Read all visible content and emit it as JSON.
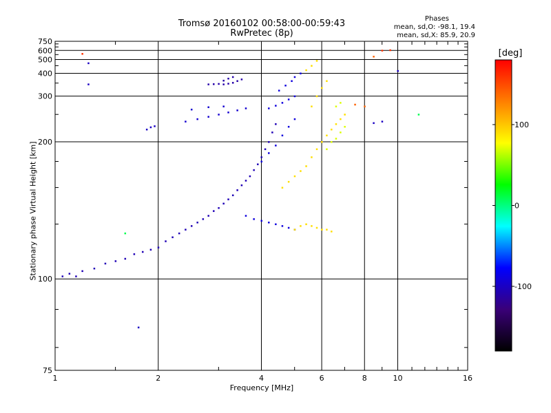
{
  "header": {
    "title_line1": "Tromsø 20160102 00:58:00-00:59:43",
    "title_line2": "RwPretec (8p)",
    "stats_heading": "Phases",
    "stats_o": "mean, sd,O: -98.1, 19.4",
    "stats_x": "mean, sd,X:  85.9, 20.9"
  },
  "chart_data": {
    "type": "scatter",
    "title": "Tromsø 20160102 00:58:00-00:59:43",
    "subtitle": "RwPretec (8p)",
    "xlabel": "Frequency [MHz]",
    "ylabel": "Stationary phase Virtual Height [km]",
    "xscale": "log",
    "yscale": "reciprocal",
    "xlim": [
      1,
      16
    ],
    "ylim": [
      75,
      750
    ],
    "x_ticks": [
      1,
      2,
      4,
      6,
      8,
      10,
      16
    ],
    "y_ticks": [
      75,
      100,
      200,
      300,
      400,
      500,
      600,
      750
    ],
    "grid": true,
    "colorbar": {
      "label": "[deg]",
      "range": [
        -180,
        180
      ],
      "ticks": [
        100,
        0,
        -100
      ],
      "colormap": [
        "#000000",
        "#3a0078",
        "#0000ff",
        "#00ffff",
        "#00ff00",
        "#ffff00",
        "#ff7f00",
        "#ff0000"
      ]
    },
    "series": [
      {
        "phase": -105,
        "points": [
          [
            1.05,
            101
          ],
          [
            1.1,
            102
          ],
          [
            1.15,
            101
          ],
          [
            1.2,
            103
          ],
          [
            1.3,
            104
          ],
          [
            1.4,
            106
          ],
          [
            1.5,
            107
          ],
          [
            1.6,
            108
          ],
          [
            1.7,
            110
          ],
          [
            1.8,
            111
          ],
          [
            1.9,
            112
          ],
          [
            2.0,
            113
          ],
          [
            2.1,
            116
          ],
          [
            2.2,
            118
          ],
          [
            2.3,
            120
          ],
          [
            2.4,
            122
          ],
          [
            2.5,
            124
          ],
          [
            2.6,
            126
          ],
          [
            2.7,
            128
          ],
          [
            2.8,
            130
          ],
          [
            2.9,
            133
          ],
          [
            3.0,
            135
          ],
          [
            3.1,
            138
          ],
          [
            3.2,
            141
          ],
          [
            3.3,
            144
          ],
          [
            3.4,
            148
          ],
          [
            3.5,
            152
          ],
          [
            3.6,
            156
          ],
          [
            3.7,
            160
          ],
          [
            3.8,
            166
          ],
          [
            3.9,
            172
          ],
          [
            4.0,
            180
          ],
          [
            4.1,
            190
          ],
          [
            4.2,
            200
          ],
          [
            4.3,
            215
          ],
          [
            4.4,
            230
          ]
        ]
      },
      {
        "phase": -110,
        "points": [
          [
            2.8,
            345
          ],
          [
            2.9,
            346
          ],
          [
            3.0,
            347
          ],
          [
            3.1,
            345
          ],
          [
            3.2,
            348
          ],
          [
            3.3,
            352
          ],
          [
            3.4,
            360
          ],
          [
            3.5,
            368
          ],
          [
            3.1,
            362
          ],
          [
            3.2,
            372
          ],
          [
            3.3,
            380
          ]
        ]
      },
      {
        "phase": -95,
        "points": [
          [
            2.4,
            235
          ],
          [
            2.6,
            240
          ],
          [
            2.8,
            245
          ],
          [
            3.0,
            250
          ],
          [
            3.2,
            255
          ],
          [
            3.4,
            260
          ],
          [
            3.6,
            265
          ],
          [
            2.5,
            262
          ],
          [
            2.8,
            268
          ],
          [
            3.1,
            270
          ]
        ]
      },
      {
        "phase": -100,
        "points": [
          [
            1.85,
            220
          ],
          [
            1.9,
            224
          ],
          [
            1.95,
            226
          ],
          [
            1.25,
            470
          ],
          [
            1.25,
            345
          ],
          [
            1.75,
            85
          ],
          [
            10.0,
            415
          ],
          [
            9.0,
            235
          ],
          [
            8.5,
            232
          ]
        ]
      },
      {
        "phase": -90,
        "points": [
          [
            3.6,
            130
          ],
          [
            3.8,
            128
          ],
          [
            4.0,
            127
          ],
          [
            4.2,
            126
          ],
          [
            4.4,
            125
          ],
          [
            4.6,
            124
          ],
          [
            4.8,
            123
          ],
          [
            5.0,
            122
          ],
          [
            4.0,
            175
          ],
          [
            4.2,
            185
          ],
          [
            4.4,
            195
          ],
          [
            4.6,
            210
          ],
          [
            4.8,
            225
          ],
          [
            5.0,
            240
          ],
          [
            4.2,
            265
          ],
          [
            4.4,
            272
          ],
          [
            4.6,
            280
          ],
          [
            4.8,
            290
          ],
          [
            5.0,
            300
          ],
          [
            4.5,
            320
          ],
          [
            4.7,
            340
          ],
          [
            4.9,
            360
          ],
          [
            5.0,
            380
          ],
          [
            5.2,
            400
          ]
        ]
      },
      {
        "phase": 90,
        "points": [
          [
            4.6,
            150
          ],
          [
            4.8,
            155
          ],
          [
            5.0,
            160
          ],
          [
            5.2,
            165
          ],
          [
            5.4,
            170
          ],
          [
            5.6,
            180
          ],
          [
            5.8,
            190
          ],
          [
            6.0,
            200
          ],
          [
            6.2,
            210
          ],
          [
            6.4,
            220
          ],
          [
            6.6,
            230
          ],
          [
            6.8,
            240
          ],
          [
            7.0,
            250
          ],
          [
            5.0,
            122
          ],
          [
            5.2,
            124
          ],
          [
            5.4,
            125
          ],
          [
            5.6,
            124
          ],
          [
            5.8,
            123
          ],
          [
            6.0,
            122
          ],
          [
            6.2,
            122
          ],
          [
            6.4,
            121
          ],
          [
            5.6,
            270
          ],
          [
            5.8,
            300
          ],
          [
            6.0,
            330
          ],
          [
            6.2,
            360
          ],
          [
            5.4,
            420
          ],
          [
            5.6,
            450
          ],
          [
            5.8,
            490
          ]
        ]
      },
      {
        "phase": 70,
        "points": [
          [
            6.2,
            190
          ],
          [
            6.4,
            200
          ],
          [
            6.6,
            205
          ],
          [
            6.8,
            215
          ],
          [
            7.0,
            225
          ],
          [
            6.6,
            270
          ],
          [
            6.8,
            280
          ]
        ]
      },
      {
        "phase": 160,
        "points": [
          [
            9.0,
            600
          ],
          [
            9.5,
            605
          ],
          [
            1.2,
            560
          ]
        ]
      },
      {
        "phase": 140,
        "points": [
          [
            8.5,
            530
          ],
          [
            7.5,
            275
          ],
          [
            8.0,
            270
          ]
        ]
      },
      {
        "phase": 10,
        "points": [
          [
            11.5,
            250
          ],
          [
            1.6,
            120
          ]
        ]
      }
    ]
  }
}
